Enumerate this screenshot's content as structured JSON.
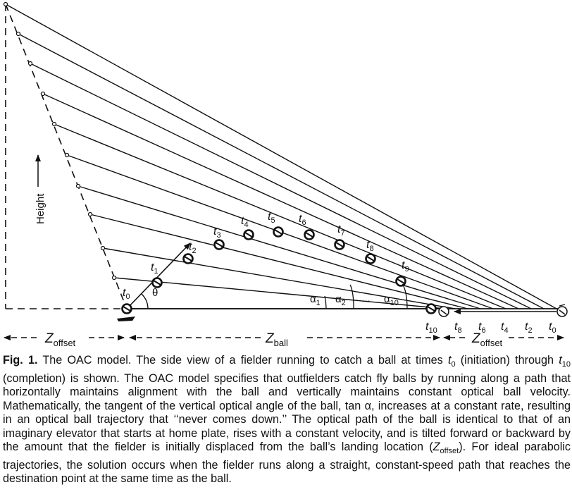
{
  "diagram": {
    "height_label": "Height",
    "theta_label": "θ",
    "time_labels": [
      {
        "base": "t",
        "sub": "0"
      },
      {
        "base": "t",
        "sub": "1"
      },
      {
        "base": "t",
        "sub": "2"
      },
      {
        "base": "t",
        "sub": "3"
      },
      {
        "base": "t",
        "sub": "4"
      },
      {
        "base": "t",
        "sub": "5"
      },
      {
        "base": "t",
        "sub": "6"
      },
      {
        "base": "t",
        "sub": "7"
      },
      {
        "base": "t",
        "sub": "8"
      },
      {
        "base": "t",
        "sub": "9"
      }
    ],
    "alpha_labels": [
      {
        "base": "α",
        "sub": "1"
      },
      {
        "base": "α",
        "sub": "2"
      },
      {
        "base": "α",
        "sub": "10"
      }
    ],
    "alpha_ellipsis": "...",
    "fielder_labels": [
      {
        "base": "t",
        "sub": "10"
      },
      {
        "base": "t",
        "sub": "8"
      },
      {
        "base": "t",
        "sub": "6"
      },
      {
        "base": "t",
        "sub": "4"
      },
      {
        "base": "t",
        "sub": "2"
      },
      {
        "base": "t",
        "sub": "0"
      }
    ],
    "z_offset_left": {
      "base": "Z",
      "sub": "offset"
    },
    "z_ball": {
      "base": "Z",
      "sub": "ball"
    },
    "z_offset_right": {
      "base": "Z",
      "sub": "offset"
    }
  },
  "caption": {
    "label": "Fig. 1.",
    "text_1": " The OAC model. The side view of a fielder running to catch a ball at times ",
    "t0": "t",
    "t0_sub": "0",
    "text_2": " (initiation) through ",
    "t10": "t",
    "t10_sub": "10",
    "text_3": " (completion) is shown. The OAC model specifies that outfielders catch fly balls by running along a path that horizontally maintains alignment with the ball and vertically maintains constant optical ball velocity. Mathematically, the tangent of the vertical optical angle of the ball, tan α, increases at a constant rate, resulting in an optical ball trajectory that ‘‘never comes down.’’ The optical path of the ball is identical to that of an imaginary elevator that starts at home plate, rises with a constant velocity, and is tilted forward or backward by the amount that the fielder is initially displaced from the ball’s landing location (",
    "zoff": "Z",
    "zoff_sub": "offset",
    "text_4": "). For ideal parabolic trajectories, the solution occurs when the fielder runs along a straight, constant-speed path that reaches the destination point at the same time as the ball."
  }
}
